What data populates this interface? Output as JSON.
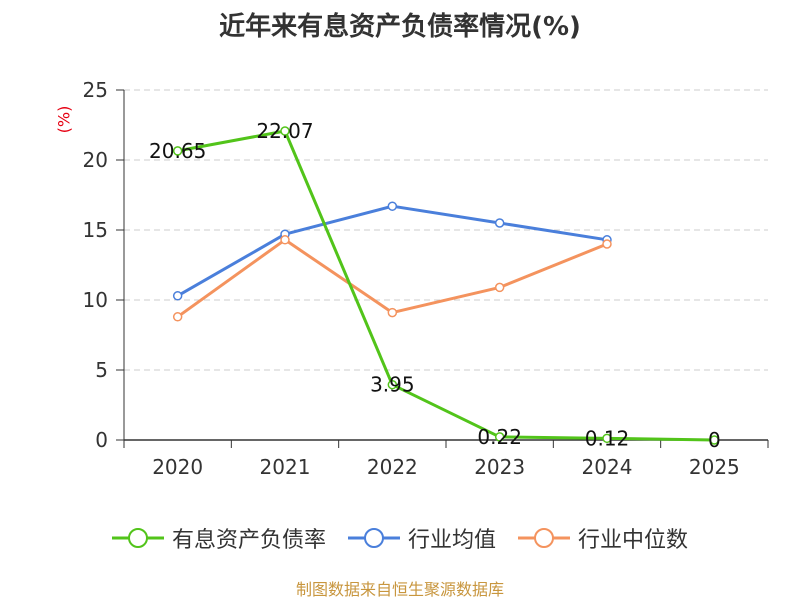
{
  "chart_data": {
    "type": "line",
    "title": "近年来有息资产负债率情况(%)",
    "ylabel": "(%)",
    "categories": [
      "2020",
      "2021",
      "2022",
      "2023",
      "2024",
      "2025"
    ],
    "ylim": [
      0,
      25
    ],
    "yticks": [
      "0",
      "5",
      "10",
      "15",
      "20",
      "25"
    ],
    "grid": true,
    "legend_position": "bottom",
    "series": [
      {
        "name": "有息资产负债率",
        "color": "#52c41a",
        "values": [
          20.65,
          22.07,
          3.95,
          0.22,
          0.12,
          0
        ],
        "labels": [
          "20.65",
          "22.07",
          "3.95",
          "0.22",
          "0.12",
          "0"
        ]
      },
      {
        "name": "行业均值",
        "color": "#4a7fdb",
        "values": [
          10.3,
          14.7,
          16.7,
          15.5,
          14.3,
          null
        ]
      },
      {
        "name": "行业中位数",
        "color": "#f4935e",
        "values": [
          8.8,
          14.3,
          9.1,
          10.9,
          14.0,
          null
        ]
      }
    ]
  },
  "source_text": "制图数据来自恒生聚源数据库",
  "colors": {
    "ylabel": "#e60012",
    "source": "#c8963e",
    "axis": "#333333",
    "grid": "#cccccc"
  }
}
